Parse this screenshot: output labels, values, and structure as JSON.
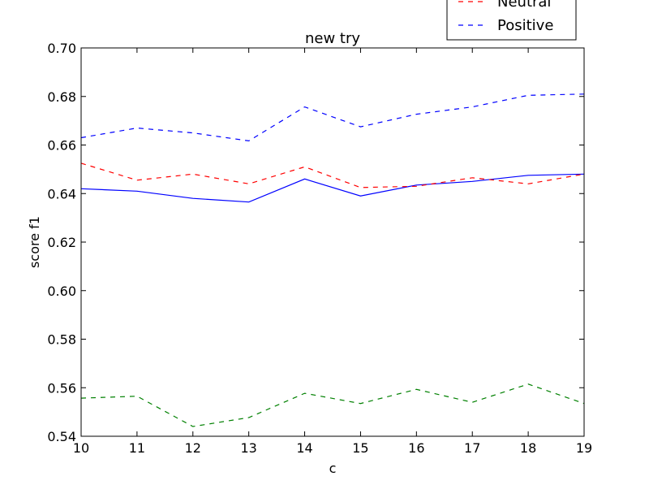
{
  "chart_data": {
    "type": "line",
    "title": "new try",
    "xlabel": "c",
    "ylabel": "score f1",
    "xlim": [
      10,
      19
    ],
    "ylim": [
      0.54,
      0.7
    ],
    "x": [
      10,
      11,
      12,
      13,
      14,
      15,
      16,
      17,
      18,
      19
    ],
    "x_ticks": [
      "10",
      "11",
      "12",
      "13",
      "14",
      "15",
      "16",
      "17",
      "18",
      "19"
    ],
    "y_ticks": [
      "0.54",
      "0.56",
      "0.58",
      "0.60",
      "0.62",
      "0.64",
      "0.66",
      "0.68",
      "0.70"
    ],
    "grid": false,
    "legend_position": "top-right",
    "series": [
      {
        "name": "",
        "color": "#0000ff",
        "style": "solid",
        "values": [
          0.642,
          0.641,
          0.638,
          0.6365,
          0.646,
          0.639,
          0.6435,
          0.645,
          0.6475,
          0.648
        ]
      },
      {
        "name": "Neutral",
        "color": "#ff0000",
        "style": "dashed",
        "values": [
          0.6525,
          0.6455,
          0.648,
          0.644,
          0.651,
          0.6425,
          0.643,
          0.6465,
          0.644,
          0.648
        ]
      },
      {
        "name": "Positive",
        "color": "#0000ff",
        "style": "dashed",
        "values": [
          0.663,
          0.667,
          0.665,
          0.6617,
          0.6757,
          0.6675,
          0.6727,
          0.6757,
          0.6805,
          0.681
        ]
      },
      {
        "name": "",
        "color": "#008000",
        "style": "dashed",
        "values": [
          0.5557,
          0.5565,
          0.544,
          0.5477,
          0.5577,
          0.5535,
          0.5593,
          0.554,
          0.5615,
          0.5535
        ]
      }
    ]
  }
}
